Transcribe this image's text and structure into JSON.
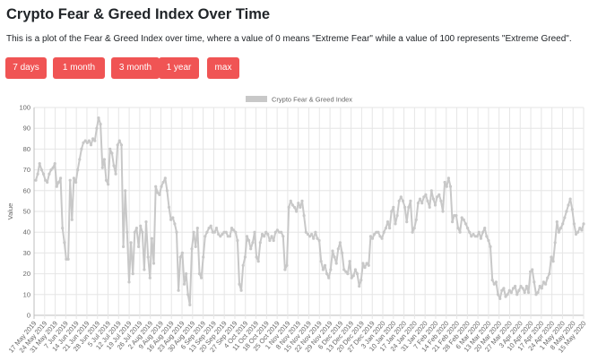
{
  "page": {
    "title": "Crypto Fear & Greed Index Over Time",
    "description": "This is a plot of the Fear & Greed Index over time, where a value of 0 means \"Extreme Fear\" while a value of 100 represents \"Extreme Greed\"."
  },
  "range_buttons": [
    {
      "label": "7 days"
    },
    {
      "label": "1 month"
    },
    {
      "label": "3 month"
    },
    {
      "label": "1 year"
    },
    {
      "label": "max"
    }
  ],
  "colors": {
    "button": "#f05454",
    "series_line": "#c8c8c8",
    "grid": "#e6e6e6"
  },
  "chart_data": {
    "type": "line",
    "title": "",
    "xlabel": "",
    "ylabel": "Value",
    "ylim": [
      0,
      100
    ],
    "yticks": [
      0,
      10,
      20,
      30,
      40,
      50,
      60,
      70,
      80,
      90,
      100
    ],
    "grid": true,
    "legend_position": "top-center",
    "x_tick_labels": [
      "17 May 2019",
      "24 May 2019",
      "31 May 2019",
      "7 Jun 2019",
      "14 Jun 2019",
      "21 Jun 2019",
      "28 Jun 2019",
      "5 Jul 2019",
      "12 Jul 2019",
      "19 Jul 2019",
      "26 Jul 2019",
      "2 Aug 2019",
      "9 Aug 2019",
      "16 Aug 2019",
      "23 Aug 2019",
      "30 Aug 2019",
      "6 Sep 2019",
      "13 Sep 2019",
      "20 Sep 2019",
      "27 Sep 2019",
      "4 Oct 2019",
      "11 Oct 2019",
      "18 Oct 2019",
      "25 Oct 2019",
      "1 Nov 2019",
      "8 Nov 2019",
      "15 Nov 2019",
      "22 Nov 2019",
      "29 Nov 2019",
      "6 Dec 2019",
      "13 Dec 2019",
      "20 Dec 2019",
      "27 Dec 2019",
      "3 Jan 2020",
      "10 Jan 2020",
      "17 Jan 2020",
      "24 Jan 2020",
      "31 Jan 2020",
      "7 Feb 2020",
      "14 Feb 2020",
      "21 Feb 2020",
      "28 Feb 2020",
      "6 Mar 2020",
      "13 Mar 2020",
      "20 Mar 2020",
      "27 Mar 2020",
      "3 Apr 2020",
      "10 Apr 2020",
      "17 Apr 2020",
      "24 Apr 2020",
      "1 May 2020",
      "8 May 2020",
      "15 May 2020"
    ],
    "series": [
      {
        "name": "Crypto Fear & Greed Index",
        "values": [
          65,
          68,
          73,
          70,
          68,
          65,
          64,
          68,
          70,
          71,
          73,
          62,
          64,
          66,
          42,
          35,
          27,
          27,
          65,
          46,
          66,
          64,
          70,
          75,
          80,
          83,
          84,
          83,
          84,
          82,
          85,
          84,
          90,
          95,
          92,
          71,
          75,
          65,
          63,
          80,
          78,
          72,
          68,
          82,
          84,
          82,
          33,
          60,
          40,
          16,
          35,
          20,
          40,
          42,
          33,
          43,
          40,
          22,
          45,
          28,
          18,
          37,
          25,
          62,
          59,
          58,
          62,
          64,
          66,
          60,
          52,
          46,
          47,
          44,
          40,
          12,
          28,
          30,
          15,
          20,
          10,
          5,
          32,
          40,
          33,
          42,
          20,
          18,
          28,
          38,
          40,
          42,
          43,
          40,
          40,
          42,
          39,
          38,
          39,
          40,
          40,
          38,
          38,
          42,
          41,
          40,
          36,
          15,
          12,
          24,
          28,
          38,
          36,
          32,
          35,
          40,
          28,
          26,
          35,
          39,
          38,
          40,
          39,
          36,
          38,
          36,
          40,
          41,
          40,
          40,
          38,
          22,
          24,
          52,
          55,
          53,
          52,
          50,
          54,
          52,
          55,
          48,
          40,
          39,
          38,
          39,
          37,
          40,
          37,
          36,
          26,
          22,
          24,
          20,
          18,
          22,
          31,
          28,
          25,
          32,
          35,
          30,
          22,
          21,
          20,
          26,
          18,
          19,
          22,
          20,
          14,
          17,
          25,
          23,
          25,
          24,
          38,
          37,
          39,
          40,
          40,
          38,
          37,
          40,
          42,
          45,
          42,
          50,
          52,
          44,
          48,
          55,
          57,
          55,
          52,
          45,
          52,
          55,
          40,
          42,
          46,
          54,
          56,
          54,
          57,
          58,
          55,
          52,
          60,
          56,
          53,
          57,
          58,
          55,
          50,
          64,
          62,
          66,
          62,
          45,
          48,
          48,
          42,
          40,
          47,
          46,
          44,
          42,
          40,
          38,
          39,
          38,
          38,
          40,
          37,
          40,
          42,
          38,
          36,
          33,
          17,
          15,
          16,
          10,
          8,
          12,
          13,
          9,
          10,
          12,
          11,
          13,
          14,
          10,
          12,
          14,
          13,
          11,
          14,
          11,
          21,
          22,
          16,
          10,
          11,
          14,
          13,
          16,
          15,
          18,
          20,
          28,
          26,
          35,
          45,
          40,
          42,
          44,
          47,
          50,
          53,
          56,
          51,
          44,
          39,
          40,
          42,
          41,
          44
        ]
      }
    ]
  }
}
